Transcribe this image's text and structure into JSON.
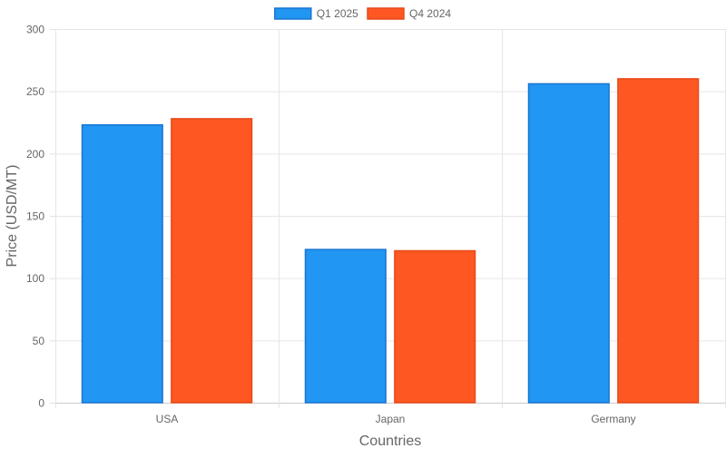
{
  "chart_data": {
    "type": "bar",
    "categories": [
      "USA",
      "Japan",
      "Germany"
    ],
    "series": [
      {
        "name": "Q1 2025",
        "values": [
          223,
          123,
          256
        ],
        "color": "#2196f3",
        "border_color": "#1976d2"
      },
      {
        "name": "Q4 2024",
        "values": [
          228,
          122,
          260
        ],
        "color": "#ff5722",
        "border_color": "#e64a19"
      }
    ],
    "title": "",
    "xlabel": "Countries",
    "ylabel": "Price (USD/MT)",
    "ylim": [
      0,
      300
    ],
    "yticks": [
      0,
      50,
      100,
      150,
      200,
      250,
      300
    ],
    "grid": true,
    "legend_position": "top-center"
  }
}
